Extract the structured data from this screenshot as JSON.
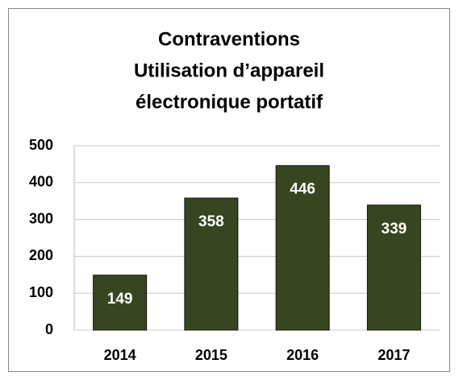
{
  "chart_data": {
    "type": "bar",
    "title": [
      "Contraventions",
      "Utilisation d’appareil",
      "électronique portatif"
    ],
    "categories": [
      "2014",
      "2015",
      "2016",
      "2017"
    ],
    "values": [
      149,
      358,
      446,
      339
    ],
    "color": "#374620",
    "ylim": [
      0,
      500
    ],
    "yticks": [
      0,
      100,
      200,
      300,
      400,
      500
    ],
    "grid": true
  }
}
